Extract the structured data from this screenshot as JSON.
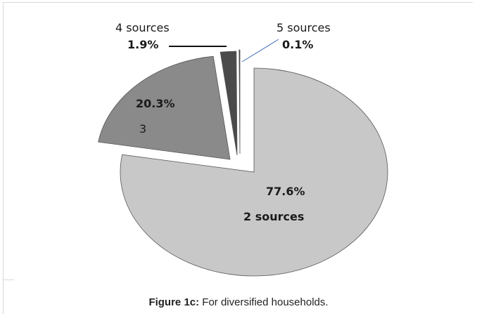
{
  "chart_data": {
    "type": "pie",
    "title": "",
    "slices": [
      {
        "name": "2 sources",
        "value": 77.6,
        "label": "77.6%",
        "color": "#c8c8c8"
      },
      {
        "name": "3",
        "value": 20.3,
        "label": "20.3%",
        "color": "#8a8a8a"
      },
      {
        "name": "4 sources",
        "value": 1.9,
        "label": "1.9%",
        "color": "#4a4a4a"
      },
      {
        "name": "5 sources",
        "value": 0.1,
        "label": "0.1%",
        "color": "#2e2e2e"
      }
    ],
    "exploded": true,
    "legend": "none"
  },
  "caption": {
    "prefix": "Figure 1c:",
    "text": " For diversified households."
  }
}
